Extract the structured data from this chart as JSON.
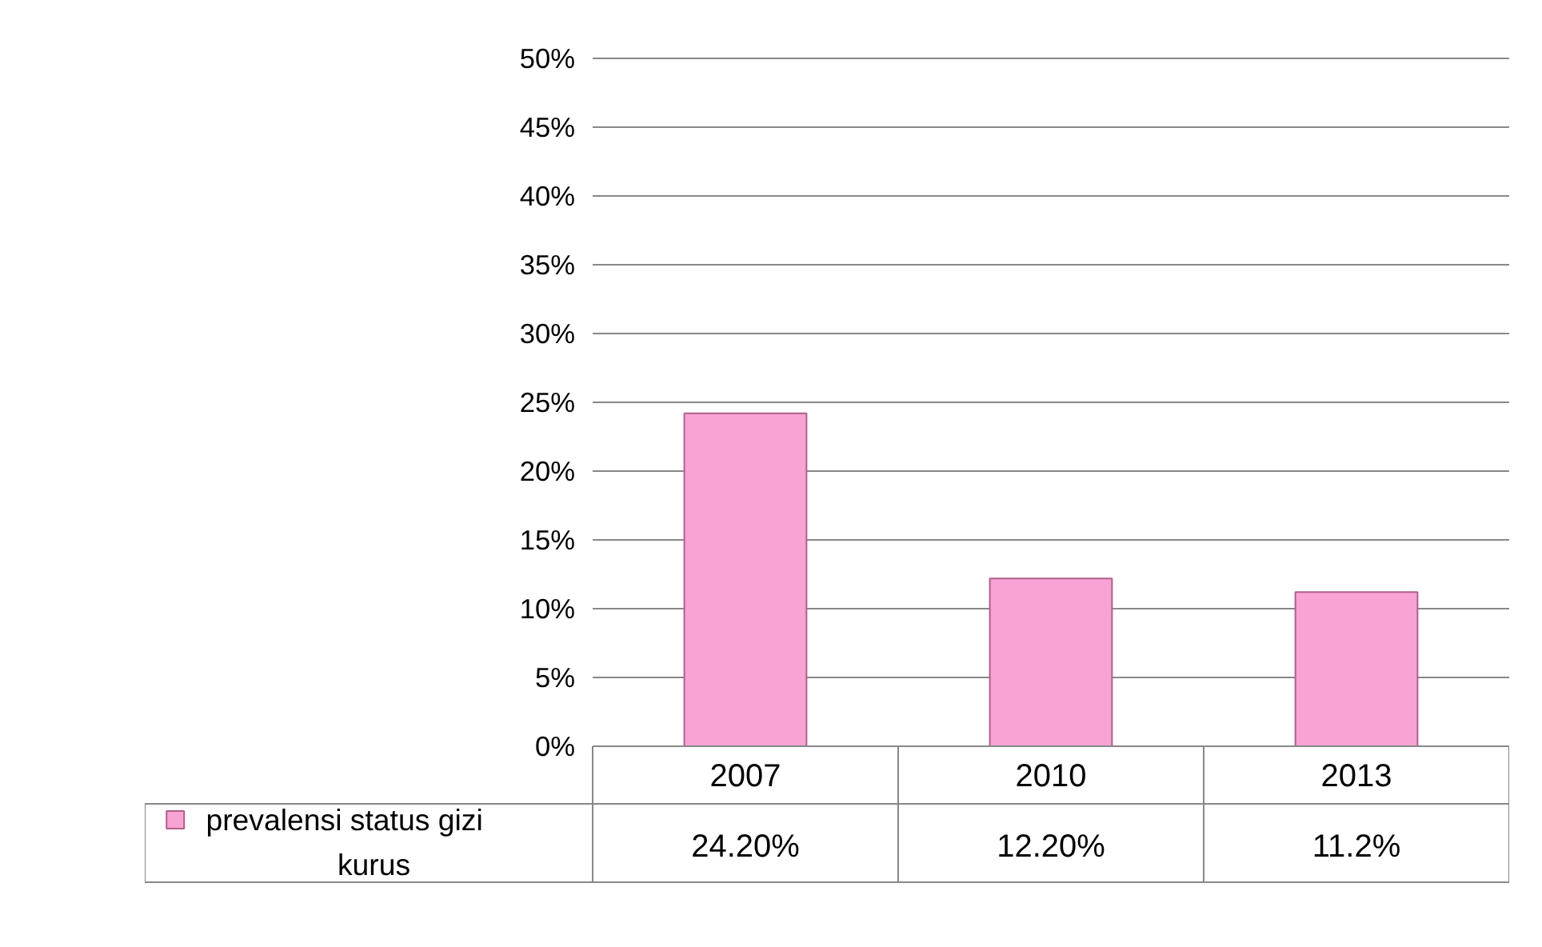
{
  "chart_data": {
    "type": "bar",
    "categories": [
      "2007",
      "2010",
      "2013"
    ],
    "series": [
      {
        "name": "prevalensi status gizi kurus",
        "color": "#f7a3d3",
        "values": [
          24.2,
          12.2,
          11.2
        ],
        "value_labels": [
          "24.20%",
          "12.20%",
          "11.2%"
        ]
      }
    ],
    "ylim": [
      0,
      50
    ],
    "yticks": [
      {
        "value": 0,
        "label": "0%"
      },
      {
        "value": 5,
        "label": "5%"
      },
      {
        "value": 10,
        "label": "10%"
      },
      {
        "value": 15,
        "label": "15%"
      },
      {
        "value": 20,
        "label": "20%"
      },
      {
        "value": 25,
        "label": "25%"
      },
      {
        "value": 30,
        "label": "30%"
      },
      {
        "value": 35,
        "label": "35%"
      },
      {
        "value": 40,
        "label": "40%"
      },
      {
        "value": 45,
        "label": "45%"
      },
      {
        "value": 50,
        "label": "50%"
      }
    ],
    "grid": "y",
    "legend": "bottom left"
  }
}
